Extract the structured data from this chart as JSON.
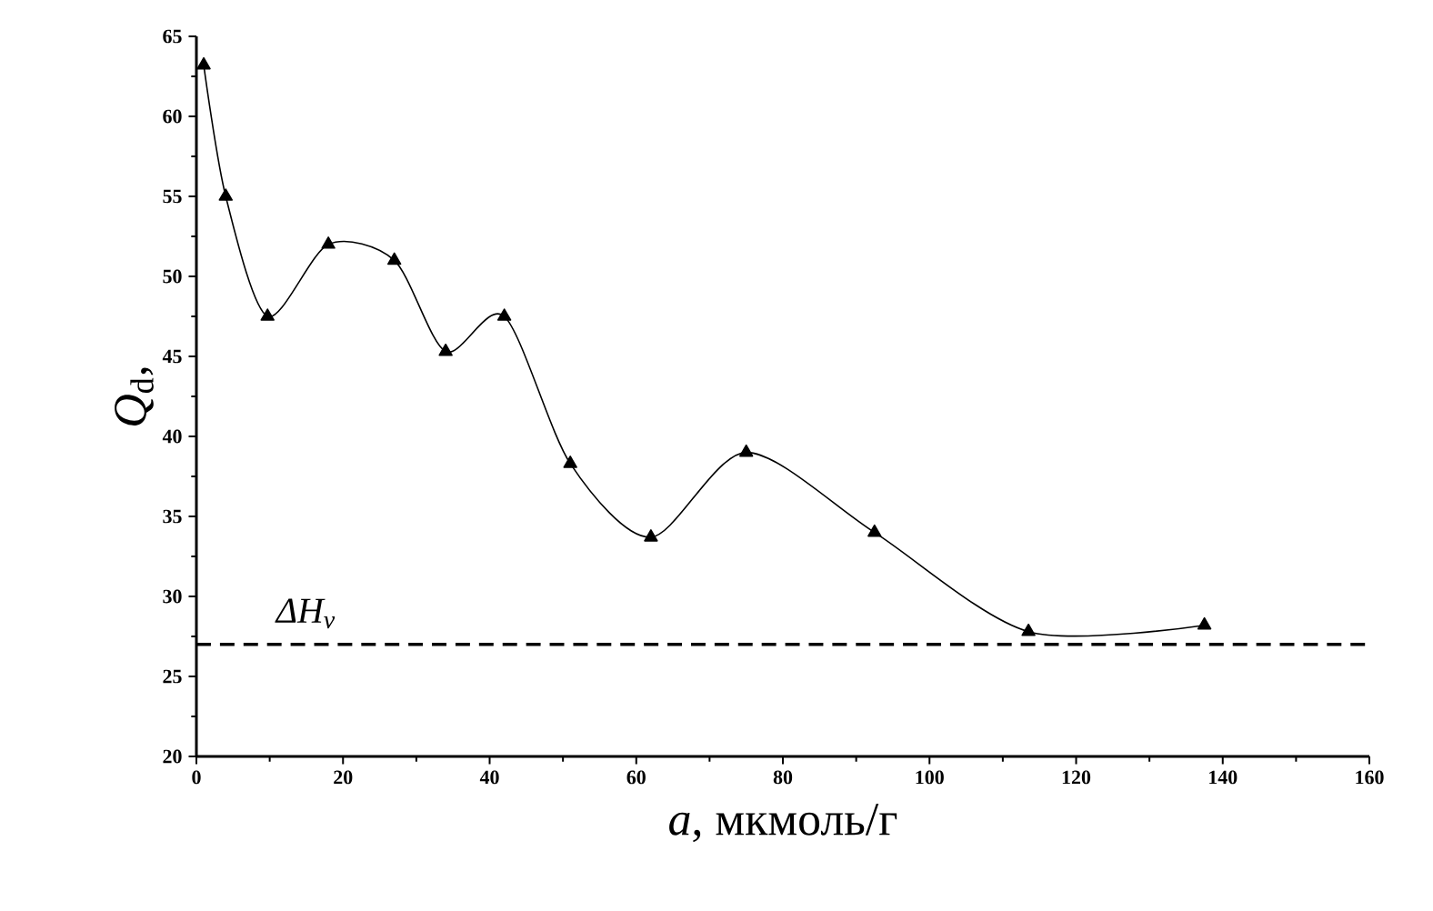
{
  "chart_data": {
    "type": "line",
    "xlabel": "*a*, мкмоль/г",
    "ylabel": "*Q*$_{d}$,",
    "x": [
      1,
      4,
      9.7,
      18,
      27,
      34,
      42,
      51,
      62,
      75,
      92.5,
      113.5,
      137.5
    ],
    "values": [
      63.2,
      55,
      47.5,
      52,
      51,
      45.3,
      47.5,
      38.3,
      33.7,
      39,
      34,
      27.8,
      28.2
    ],
    "color": "#000000",
    "marker": "triangle",
    "line_style": "solid",
    "xlim": [
      0,
      160
    ],
    "xticks": [
      0,
      20,
      40,
      60,
      80,
      100,
      120,
      140,
      160
    ],
    "ylim": [
      20,
      65
    ],
    "yticks": [
      20,
      25,
      30,
      35,
      40,
      45,
      50,
      55,
      60,
      65
    ],
    "ref_lines": [
      {
        "axis": "y",
        "value": 27,
        "label": "ΔH$_{v}$",
        "color": "#000000",
        "line_style": "dashed"
      }
    ],
    "grid": false
  }
}
